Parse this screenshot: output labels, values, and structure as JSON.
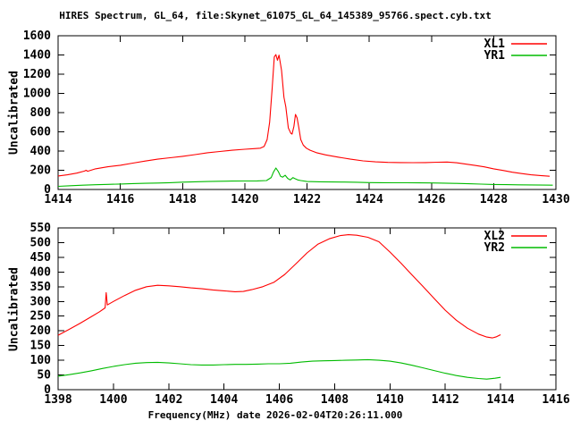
{
  "title": "HIRES Spectrum, GL_64, file:Skynet_61075_GL_64_145389_95766.spect.cyb.txt",
  "colors": {
    "background": "#ffffff",
    "axis": "#000000",
    "series_red": "#ff0000",
    "series_green": "#00bb00"
  },
  "chart_data": [
    {
      "type": "line",
      "ylabel": "Uncalibrated",
      "xlabel": "",
      "xlim": [
        1414,
        1430
      ],
      "ylim": [
        0,
        1600
      ],
      "xticks": [
        1414,
        1416,
        1418,
        1420,
        1422,
        1424,
        1426,
        1428,
        1430
      ],
      "yticks": [
        0,
        200,
        400,
        600,
        800,
        1000,
        1200,
        1400,
        1600
      ],
      "grid": false,
      "legend_position": "top-right-inside",
      "series": [
        {
          "name": "XL1",
          "color": "#ff0000",
          "points": [
            [
              1414.0,
              140
            ],
            [
              1414.3,
              153
            ],
            [
              1414.6,
              170
            ],
            [
              1414.85,
              192
            ],
            [
              1414.9,
              200
            ],
            [
              1414.95,
              190
            ],
            [
              1415.2,
              215
            ],
            [
              1415.6,
              236
            ],
            [
              1416.0,
              252
            ],
            [
              1416.4,
              274
            ],
            [
              1416.8,
              296
            ],
            [
              1417.2,
              315
            ],
            [
              1417.6,
              330
            ],
            [
              1418.0,
              345
            ],
            [
              1418.4,
              363
            ],
            [
              1418.8,
              382
            ],
            [
              1419.2,
              395
            ],
            [
              1419.6,
              408
            ],
            [
              1420.0,
              419
            ],
            [
              1420.3,
              425
            ],
            [
              1420.5,
              430
            ],
            [
              1420.62,
              447
            ],
            [
              1420.72,
              520
            ],
            [
              1420.8,
              700
            ],
            [
              1420.88,
              1050
            ],
            [
              1420.95,
              1380
            ],
            [
              1421.0,
              1404
            ],
            [
              1421.05,
              1345
            ],
            [
              1421.1,
              1398
            ],
            [
              1421.18,
              1240
            ],
            [
              1421.26,
              960
            ],
            [
              1421.32,
              860
            ],
            [
              1421.4,
              640
            ],
            [
              1421.48,
              585
            ],
            [
              1421.52,
              577
            ],
            [
              1421.58,
              660
            ],
            [
              1421.63,
              781
            ],
            [
              1421.68,
              745
            ],
            [
              1421.74,
              640
            ],
            [
              1421.8,
              520
            ],
            [
              1421.88,
              462
            ],
            [
              1421.98,
              430
            ],
            [
              1422.1,
              408
            ],
            [
              1422.3,
              383
            ],
            [
              1422.6,
              360
            ],
            [
              1423.0,
              337
            ],
            [
              1423.4,
              315
            ],
            [
              1423.8,
              298
            ],
            [
              1424.2,
              287
            ],
            [
              1424.6,
              282
            ],
            [
              1425.0,
              280
            ],
            [
              1425.4,
              279
            ],
            [
              1425.8,
              280
            ],
            [
              1426.2,
              284
            ],
            [
              1426.5,
              286
            ],
            [
              1426.8,
              278
            ],
            [
              1427.1,
              264
            ],
            [
              1427.4,
              250
            ],
            [
              1427.7,
              235
            ],
            [
              1428.0,
              215
            ],
            [
              1428.3,
              198
            ],
            [
              1428.6,
              180
            ],
            [
              1428.9,
              166
            ],
            [
              1429.2,
              153
            ],
            [
              1429.5,
              145
            ],
            [
              1429.8,
              138
            ]
          ]
        },
        {
          "name": "YR1",
          "color": "#00bb00",
          "points": [
            [
              1414.0,
              33
            ],
            [
              1414.4,
              39
            ],
            [
              1414.8,
              45
            ],
            [
              1415.2,
              49
            ],
            [
              1415.6,
              53
            ],
            [
              1416.0,
              57
            ],
            [
              1416.4,
              61
            ],
            [
              1416.8,
              64
            ],
            [
              1417.2,
              67
            ],
            [
              1417.6,
              71
            ],
            [
              1418.0,
              76
            ],
            [
              1418.4,
              80
            ],
            [
              1418.8,
              83
            ],
            [
              1419.2,
              86
            ],
            [
              1419.6,
              87
            ],
            [
              1420.0,
              88
            ],
            [
              1420.4,
              89
            ],
            [
              1420.7,
              93
            ],
            [
              1420.85,
              125
            ],
            [
              1420.92,
              180
            ],
            [
              1421.0,
              223
            ],
            [
              1421.08,
              185
            ],
            [
              1421.15,
              138
            ],
            [
              1421.22,
              128
            ],
            [
              1421.3,
              148
            ],
            [
              1421.38,
              115
            ],
            [
              1421.46,
              100
            ],
            [
              1421.55,
              124
            ],
            [
              1421.62,
              112
            ],
            [
              1421.7,
              100
            ],
            [
              1421.8,
              93
            ],
            [
              1422.0,
              83
            ],
            [
              1422.4,
              80
            ],
            [
              1422.8,
              78
            ],
            [
              1423.2,
              77
            ],
            [
              1423.6,
              75
            ],
            [
              1424.0,
              72
            ],
            [
              1424.4,
              71
            ],
            [
              1424.8,
              70
            ],
            [
              1425.2,
              70
            ],
            [
              1425.6,
              69
            ],
            [
              1426.0,
              68
            ],
            [
              1426.4,
              66
            ],
            [
              1426.8,
              63
            ],
            [
              1427.2,
              60
            ],
            [
              1427.6,
              56
            ],
            [
              1428.0,
              52
            ],
            [
              1428.4,
              50
            ],
            [
              1428.8,
              48
            ],
            [
              1429.2,
              47
            ],
            [
              1429.6,
              46
            ],
            [
              1429.9,
              45
            ]
          ]
        }
      ]
    },
    {
      "type": "line",
      "ylabel": "Uncalibrated",
      "xlabel": "Frequency(MHz) date 2026-02-04T20:26:11.000",
      "xlim": [
        1398,
        1416
      ],
      "ylim": [
        0,
        550
      ],
      "xticks": [
        1398,
        1400,
        1402,
        1404,
        1406,
        1408,
        1410,
        1412,
        1414,
        1416
      ],
      "yticks": [
        0,
        50,
        100,
        150,
        200,
        250,
        300,
        350,
        400,
        450,
        500,
        550
      ],
      "grid": false,
      "legend_position": "top-right-inside",
      "series": [
        {
          "name": "XL2",
          "color": "#ff0000",
          "points": [
            [
              1398.0,
              185
            ],
            [
              1398.4,
              205
            ],
            [
              1398.8,
              226
            ],
            [
              1399.2,
              248
            ],
            [
              1399.5,
              265
            ],
            [
              1399.7,
              278
            ],
            [
              1399.74,
              330
            ],
            [
              1399.78,
              288
            ],
            [
              1400.0,
              300
            ],
            [
              1400.4,
              320
            ],
            [
              1400.8,
              338
            ],
            [
              1401.2,
              350
            ],
            [
              1401.6,
              355
            ],
            [
              1402.0,
              353
            ],
            [
              1402.4,
              350
            ],
            [
              1402.8,
              346
            ],
            [
              1403.2,
              343
            ],
            [
              1403.6,
              339
            ],
            [
              1404.0,
              336
            ],
            [
              1404.4,
              333
            ],
            [
              1404.7,
              334
            ],
            [
              1405.0,
              340
            ],
            [
              1405.4,
              350
            ],
            [
              1405.8,
              365
            ],
            [
              1406.2,
              392
            ],
            [
              1406.6,
              428
            ],
            [
              1407.0,
              465
            ],
            [
              1407.4,
              495
            ],
            [
              1407.8,
              513
            ],
            [
              1408.2,
              524
            ],
            [
              1408.5,
              527
            ],
            [
              1408.8,
              525
            ],
            [
              1409.2,
              518
            ],
            [
              1409.6,
              503
            ],
            [
              1410.0,
              468
            ],
            [
              1410.4,
              430
            ],
            [
              1410.8,
              390
            ],
            [
              1411.2,
              350
            ],
            [
              1411.6,
              310
            ],
            [
              1412.0,
              270
            ],
            [
              1412.4,
              236
            ],
            [
              1412.8,
              209
            ],
            [
              1413.2,
              189
            ],
            [
              1413.5,
              179
            ],
            [
              1413.7,
              176
            ],
            [
              1413.85,
              180
            ],
            [
              1414.0,
              187
            ]
          ]
        },
        {
          "name": "YR2",
          "color": "#00bb00",
          "points": [
            [
              1398.0,
              46
            ],
            [
              1398.4,
              51
            ],
            [
              1398.8,
              57
            ],
            [
              1399.2,
              64
            ],
            [
              1399.6,
              72
            ],
            [
              1400.0,
              79
            ],
            [
              1400.4,
              85
            ],
            [
              1400.8,
              90
            ],
            [
              1401.2,
              92
            ],
            [
              1401.6,
              93
            ],
            [
              1402.0,
              91
            ],
            [
              1402.4,
              88
            ],
            [
              1402.8,
              85
            ],
            [
              1403.2,
              84
            ],
            [
              1403.6,
              84
            ],
            [
              1404.0,
              85
            ],
            [
              1404.4,
              86
            ],
            [
              1404.8,
              86
            ],
            [
              1405.2,
              87
            ],
            [
              1405.6,
              88
            ],
            [
              1406.0,
              88
            ],
            [
              1406.4,
              90
            ],
            [
              1406.8,
              94
            ],
            [
              1407.2,
              97
            ],
            [
              1407.6,
              98
            ],
            [
              1408.0,
              99
            ],
            [
              1408.4,
              100
            ],
            [
              1408.8,
              101
            ],
            [
              1409.2,
              102
            ],
            [
              1409.6,
              100
            ],
            [
              1410.0,
              97
            ],
            [
              1410.4,
              91
            ],
            [
              1410.8,
              83
            ],
            [
              1411.2,
              74
            ],
            [
              1411.6,
              65
            ],
            [
              1412.0,
              56
            ],
            [
              1412.4,
              48
            ],
            [
              1412.8,
              42
            ],
            [
              1413.2,
              38
            ],
            [
              1413.5,
              36
            ],
            [
              1413.8,
              39
            ],
            [
              1414.0,
              42
            ]
          ]
        }
      ]
    }
  ]
}
